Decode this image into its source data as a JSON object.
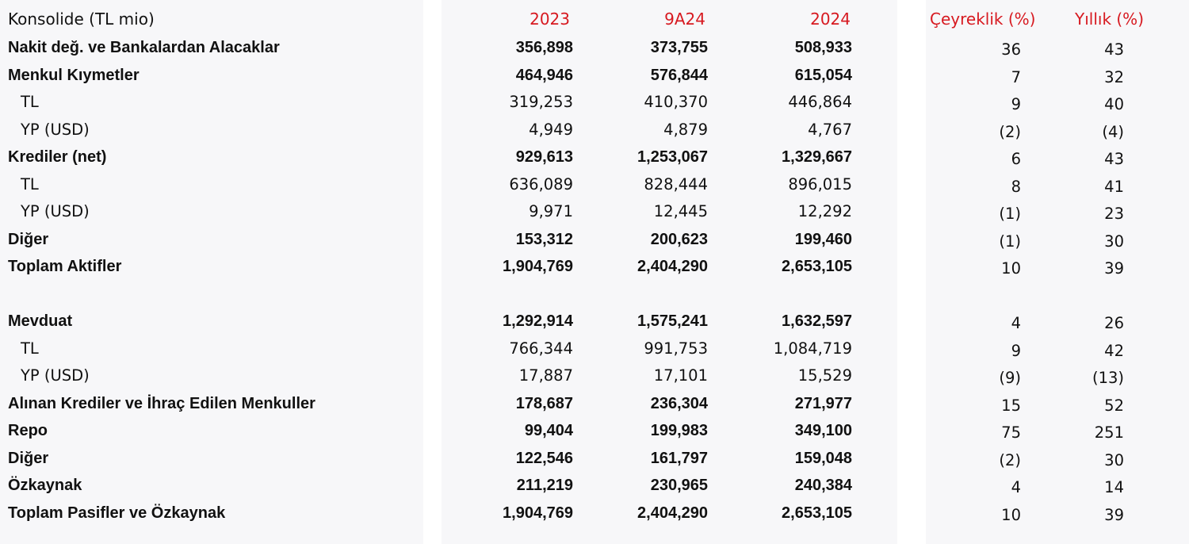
{
  "header": {
    "title": "Konsolide (TL mio)",
    "col_2023": "2023",
    "col_9a24": "9A24",
    "col_2024": "2024",
    "col_quarterly": "Çeyreklik (%)",
    "col_yearly": "Yıllık (%)"
  },
  "rows": [
    {
      "label": "Nakit değ. ve Bankalardan Alacaklar",
      "v2023": "356,898",
      "v9a24": "373,755",
      "v2024": "508,933",
      "q": "36",
      "y": "43"
    },
    {
      "label": "Menkul Kıymetler",
      "v2023": "464,946",
      "v9a24": "576,844",
      "v2024": "615,054",
      "q": "7",
      "y": "32"
    },
    {
      "label": "TL",
      "v2023": "319,253",
      "v9a24": "410,370",
      "v2024": "446,864",
      "q": "9",
      "y": "40"
    },
    {
      "label": "YP (USD)",
      "v2023": "4,949",
      "v9a24": "4,879",
      "v2024": "4,767",
      "q": "(2)",
      "y": "(4)"
    },
    {
      "label": "Krediler (net)",
      "v2023": "929,613",
      "v9a24": "1,253,067",
      "v2024": "1,329,667",
      "q": "6",
      "y": "43"
    },
    {
      "label": "TL",
      "v2023": "636,089",
      "v9a24": "828,444",
      "v2024": "896,015",
      "q": "8",
      "y": "41"
    },
    {
      "label": "YP (USD)",
      "v2023": "9,971",
      "v9a24": "12,445",
      "v2024": "12,292",
      "q": "(1)",
      "y": "23"
    },
    {
      "label": "Diğer",
      "v2023": "153,312",
      "v9a24": "200,623",
      "v2024": "199,460",
      "q": "(1)",
      "y": "30"
    },
    {
      "label": "Toplam Aktifler",
      "v2023": "1,904,769",
      "v9a24": "2,404,290",
      "v2024": "2,653,105",
      "q": "10",
      "y": "39"
    },
    {
      "label": "Mevduat",
      "v2023": "1,292,914",
      "v9a24": "1,575,241",
      "v2024": "1,632,597",
      "q": "4",
      "y": "26"
    },
    {
      "label": "TL",
      "v2023": "766,344",
      "v9a24": "991,753",
      "v2024": "1,084,719",
      "q": "9",
      "y": "42"
    },
    {
      "label": "YP (USD)",
      "v2023": "17,887",
      "v9a24": "17,101",
      "v2024": "15,529",
      "q": "(9)",
      "y": "(13)"
    },
    {
      "label": "Alınan Krediler ve İhraç Edilen Menkuller",
      "v2023": "178,687",
      "v9a24": "236,304",
      "v2024": "271,977",
      "q": "15",
      "y": "52"
    },
    {
      "label": "Repo",
      "v2023": "99,404",
      "v9a24": "199,983",
      "v2024": "349,100",
      "q": "75",
      "y": "251"
    },
    {
      "label": "Diğer",
      "v2023": "122,546",
      "v9a24": "161,797",
      "v2024": "159,048",
      "q": "(2)",
      "y": "30"
    },
    {
      "label": "Özkaynak",
      "v2023": "211,219",
      "v9a24": "230,965",
      "v2024": "240,384",
      "q": "4",
      "y": "14"
    },
    {
      "label": "Toplam Pasifler ve Özkaynak",
      "v2023": "1,904,769",
      "v9a24": "2,404,290",
      "v2024": "2,653,105",
      "q": "10",
      "y": "39"
    }
  ],
  "colors": {
    "accent_red": "#d71920",
    "panel_bg": "#f7f7f9"
  }
}
